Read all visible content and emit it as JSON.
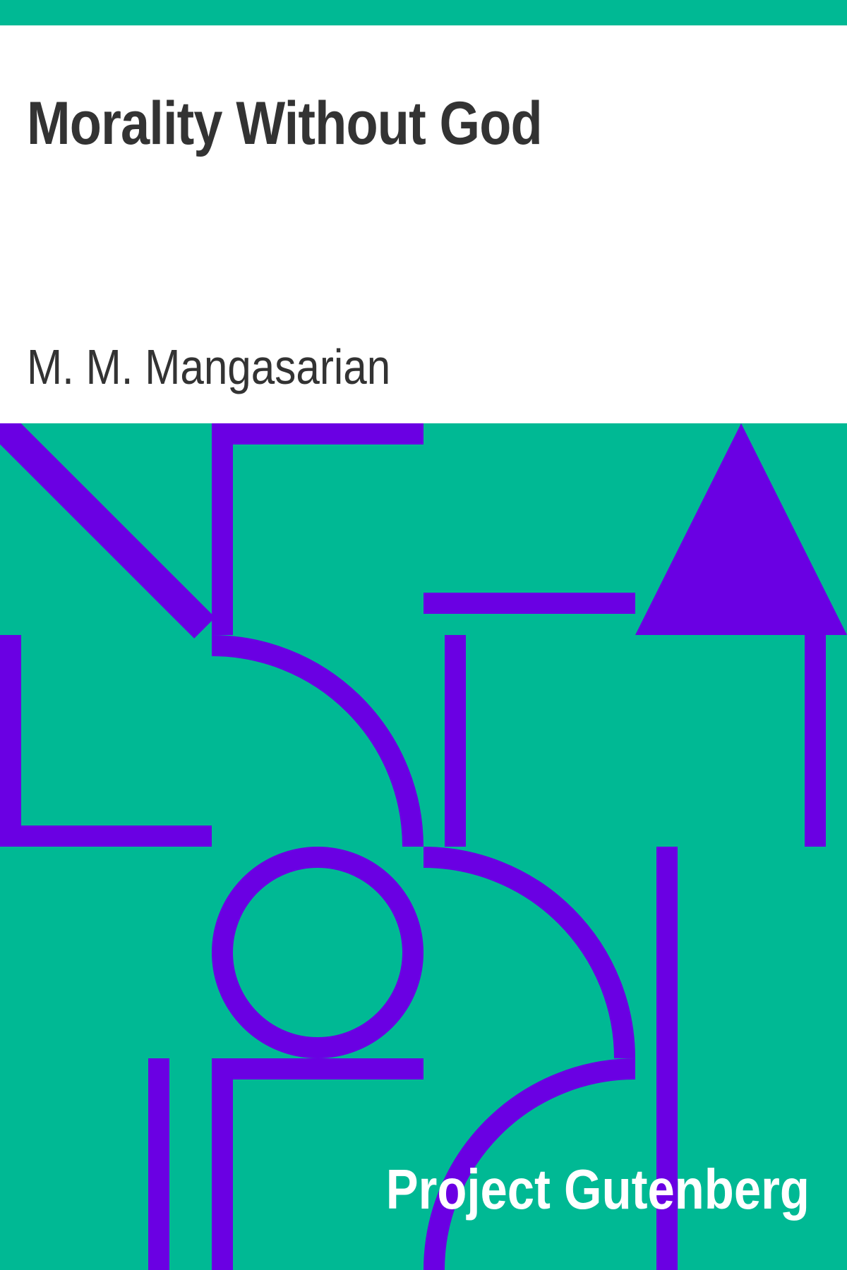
{
  "book": {
    "title": "Morality Without God",
    "author": "M. M. Mangasarian"
  },
  "publisher": {
    "name": "Project Gutenberg"
  },
  "colors": {
    "background_accent": "#00B994",
    "pattern": "#6A00E3",
    "title_text": "#333333",
    "publisher_text": "#FFFFFF",
    "page": "#FFFFFF"
  }
}
